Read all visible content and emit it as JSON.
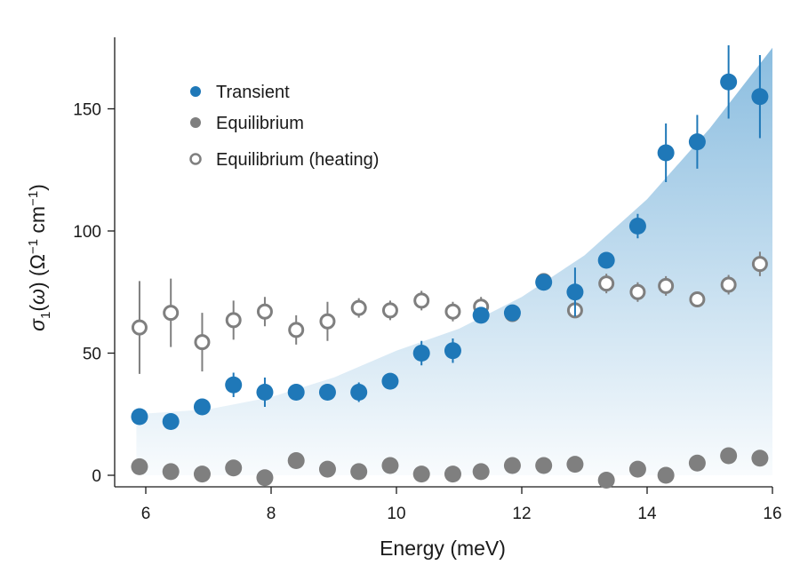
{
  "chart_data": {
    "type": "scatter",
    "title": "",
    "xlabel": "Energy (meV)",
    "ylabel": "σ₁(ω) (Ω⁻¹ cm⁻¹)",
    "ylabel_parts": {
      "sigma": "σ",
      "sub1": "1",
      "omega_open": "(",
      "omega": "ω",
      "omega_close": ")",
      "unit_open": " (Ω",
      "unit_exp1": "−1",
      "unit_mid": " cm",
      "unit_exp2": "−1",
      "unit_close": ")"
    },
    "xlim": [
      5.5,
      16
    ],
    "ylim": [
      -5,
      180
    ],
    "xticks": [
      6,
      8,
      10,
      12,
      14,
      16
    ],
    "yticks": [
      0,
      50,
      100,
      150
    ],
    "xtick_labels": [
      "6",
      "8",
      "10",
      "12",
      "14",
      "16"
    ],
    "ytick_labels": [
      "0",
      "50",
      "100",
      "150"
    ],
    "grid": false,
    "legend_position": "top-left",
    "colors": {
      "transient": "#1f78b8",
      "equilibrium": "#7f7f7f",
      "heating": "#7f7f7f",
      "shade": "#2b87c6"
    },
    "series": [
      {
        "name": "Transient",
        "marker": "filled",
        "x": [
          5.9,
          6.4,
          6.9,
          7.4,
          7.9,
          8.4,
          8.9,
          9.4,
          9.9,
          10.4,
          10.9,
          11.35,
          11.85,
          12.35,
          12.85,
          13.35,
          13.85,
          14.3,
          14.8,
          15.3,
          15.8
        ],
        "y": [
          24,
          22,
          28,
          37,
          34,
          34,
          34,
          34,
          38.5,
          50,
          51,
          65.5,
          66.5,
          79,
          75,
          88,
          102,
          132,
          136.5,
          161,
          155
        ],
        "err": [
          0,
          0,
          0,
          5,
          6,
          0,
          0,
          4,
          0,
          5,
          5,
          0,
          0,
          0,
          10,
          0,
          5,
          12,
          11,
          15,
          17
        ]
      },
      {
        "name": "Equilibrium",
        "marker": "filled",
        "x": [
          5.9,
          6.4,
          6.9,
          7.4,
          7.9,
          8.4,
          8.9,
          9.4,
          9.9,
          10.4,
          10.9,
          11.35,
          11.85,
          12.35,
          12.85,
          13.35,
          13.85,
          14.3,
          14.8,
          15.3,
          15.8
        ],
        "y": [
          3.5,
          1.5,
          0.5,
          3,
          -1,
          6,
          2.5,
          1.5,
          4,
          0.5,
          0.5,
          1.5,
          4,
          4,
          4.5,
          -2,
          2.5,
          0,
          5,
          8,
          7
        ],
        "err": []
      },
      {
        "name": "Equilibrium (heating)",
        "marker": "open",
        "x": [
          5.9,
          6.4,
          6.9,
          7.4,
          7.9,
          8.4,
          8.9,
          9.4,
          9.9,
          10.4,
          10.9,
          11.35,
          11.85,
          12.35,
          12.85,
          13.35,
          13.85,
          14.3,
          14.8,
          15.3,
          15.8
        ],
        "y": [
          60.5,
          66.5,
          54.5,
          63.5,
          67,
          59.5,
          63,
          68.5,
          67.5,
          71.5,
          67,
          69,
          66,
          79.5,
          67.5,
          78.5,
          75,
          77.5,
          72,
          78,
          86.5
        ],
        "err": [
          19,
          14,
          12,
          8,
          6,
          6,
          8,
          4,
          4,
          4,
          4,
          4,
          0,
          0,
          0,
          4,
          4,
          4,
          0,
          4,
          5
        ]
      }
    ],
    "shaded_band": {
      "x": [
        5.85,
        7.0,
        8.0,
        9.0,
        10.0,
        11.0,
        12.0,
        13.0,
        14.0,
        15.0,
        16.0
      ],
      "lower": [
        0,
        0,
        0,
        0,
        0,
        0,
        0,
        0,
        0,
        0,
        0
      ],
      "upper": [
        25,
        27,
        32,
        40,
        51,
        60,
        73,
        90,
        113,
        142,
        175
      ]
    }
  }
}
